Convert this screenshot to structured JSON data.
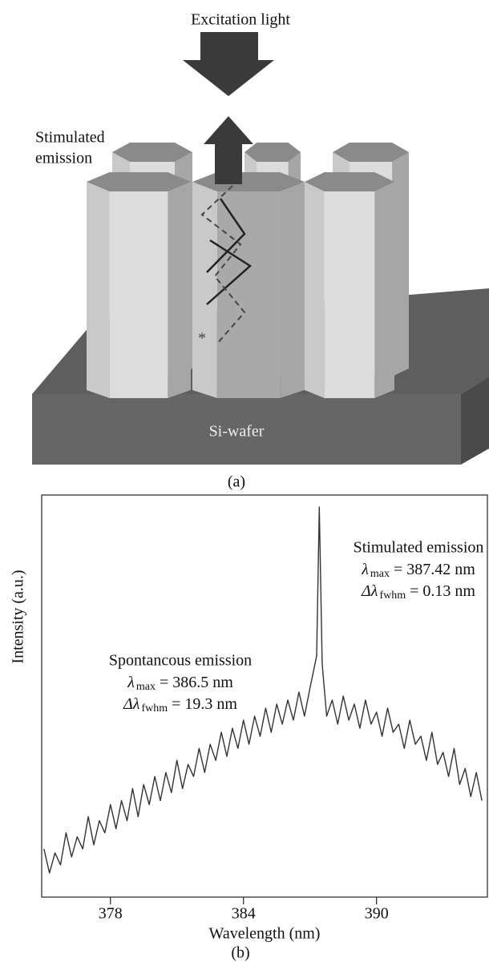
{
  "diagram": {
    "excitation": "Excitation light",
    "stimulated": [
      "Stimulated",
      "emission"
    ],
    "marker": "*",
    "wafer": "Si-wafer",
    "caption": "(a)"
  },
  "chart_data": {
    "type": "line",
    "caption": "(b)",
    "xlabel": "Wavelength (nm)",
    "ylabel": "Intensity (a.u.)",
    "color": "#333333",
    "x": [
      375.0,
      375.25,
      375.5,
      375.75,
      376.0,
      376.25,
      376.5,
      376.75,
      377.0,
      377.25,
      377.5,
      377.75,
      378.0,
      378.25,
      378.5,
      378.75,
      379.0,
      379.25,
      379.5,
      379.75,
      380.0,
      380.25,
      380.5,
      380.75,
      381.0,
      381.25,
      381.5,
      381.75,
      382.0,
      382.25,
      382.5,
      382.75,
      383.0,
      383.25,
      383.5,
      383.75,
      384.0,
      384.25,
      384.5,
      384.75,
      385.0,
      385.25,
      385.5,
      385.75,
      386.0,
      386.25,
      386.5,
      386.75,
      387.0,
      387.3,
      387.42,
      387.55,
      387.75,
      388.0,
      388.25,
      388.5,
      388.75,
      389.0,
      389.25,
      389.5,
      389.75,
      390.0,
      390.25,
      390.5,
      390.75,
      391.0,
      391.25,
      391.5,
      391.75,
      392.0,
      392.25,
      392.5,
      392.75,
      393.0,
      393.25,
      393.5,
      393.75,
      394.0,
      394.25,
      394.5,
      394.75
    ],
    "values": [
      12,
      6,
      11,
      8,
      16,
      10,
      15,
      12,
      20,
      13,
      19,
      16,
      23,
      17,
      24,
      19,
      27,
      20,
      28,
      23,
      30,
      24,
      31,
      26,
      34,
      27,
      33,
      30,
      37,
      31,
      38,
      34,
      41,
      35,
      42,
      37,
      44,
      38,
      45,
      40,
      47,
      41,
      48,
      43,
      49,
      44,
      51,
      45,
      52,
      60,
      97,
      58,
      45,
      49,
      43,
      50,
      44,
      48,
      42,
      49,
      43,
      46,
      40,
      47,
      41,
      43,
      37,
      44,
      38,
      40,
      34,
      41,
      33,
      36,
      30,
      37,
      28,
      32,
      25,
      31,
      24
    ],
    "xlim": [
      374.9,
      395.0
    ],
    "xticks": [
      378,
      384,
      390
    ],
    "ylim": [
      0,
      100
    ],
    "annotations": [
      {
        "title": "Stimulated emission",
        "lines": [
          {
            "symbol": "λ",
            "sub": "max",
            "text": "= 387.42 nm"
          },
          {
            "symbol": "Δλ",
            "sub": "fwhm",
            "text": "= 0.13 nm"
          }
        ]
      },
      {
        "title": "Spontancous emission",
        "lines": [
          {
            "symbol": "λ",
            "sub": "max",
            "text": "= 386.5 nm"
          },
          {
            "symbol": "Δλ",
            "sub": "fwhm",
            "text": "= 19.3 nm"
          }
        ]
      }
    ]
  }
}
